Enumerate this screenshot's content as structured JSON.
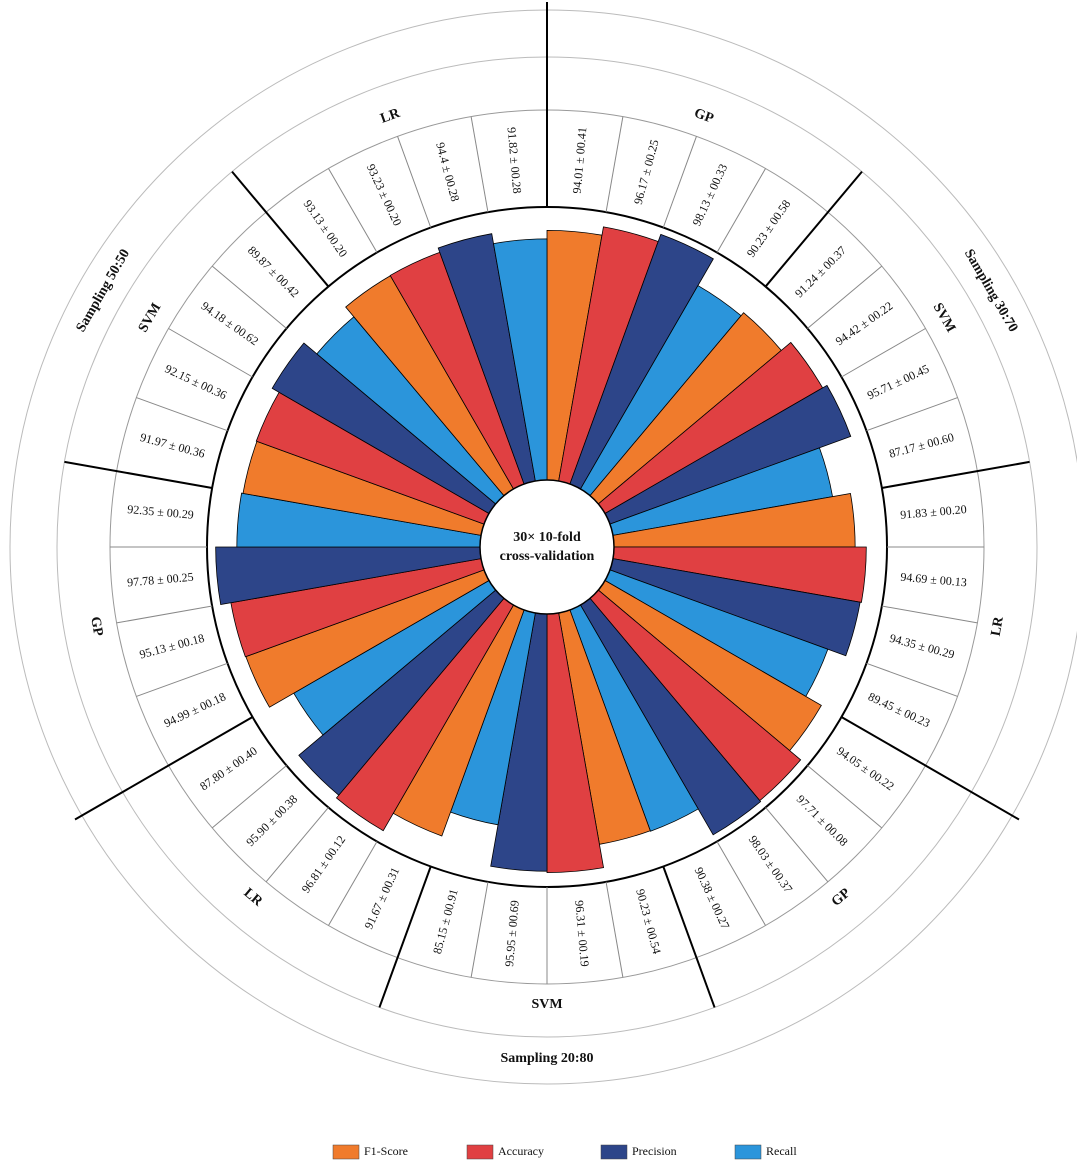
{
  "chart_data": {
    "type": "radial_bar",
    "center_label": [
      "30× 10-fold",
      "cross-validation"
    ],
    "sampling": [
      "Sampling 30:70",
      "Sampling 20:80",
      "Sampling 50:50"
    ],
    "categories": [
      "GP",
      "SVM",
      "LR",
      "GP",
      "SVM",
      "LR",
      "GP",
      "SVM",
      "LR"
    ],
    "rlim": [
      30,
      100
    ],
    "series": [
      {
        "name": "F1-Score",
        "color": "#f07b2c",
        "values": [
          94.01,
          91.24,
          91.83,
          94.05,
          90.23,
          91.67,
          94.99,
          91.97,
          93.13
        ],
        "value_labels": [
          "94.01 ± 00.41",
          "91.24 ± 00.37",
          "91.83 ± 00.20",
          "94.05 ± 00.22",
          "90.23 ± 00.54",
          "91.67 ± 00.31",
          "94.99 ± 00.18",
          "91.97 ± 00.36",
          "93.13 ± 00.20"
        ]
      },
      {
        "name": "Accuracy",
        "color": "#e04042",
        "values": [
          96.17,
          94.42,
          94.69,
          97.71,
          96.31,
          96.81,
          95.13,
          92.15,
          93.23
        ],
        "value_labels": [
          "96.17 ± 00.25",
          "94.42 ± 00.22",
          "94.69 ± 00.13",
          "97.71 ± 00.08",
          "96.31 ± 00.19",
          "96.81 ± 00.12",
          "95.13 ± 00.18",
          "92.15 ± 00.36",
          "93.23 ± 00.20"
        ]
      },
      {
        "name": "Precision",
        "color": "#2d4589",
        "values": [
          98.13,
          95.71,
          94.35,
          98.03,
          95.95,
          95.9,
          97.78,
          94.18,
          94.4
        ],
        "value_labels": [
          "98.13 ± 00.33",
          "95.71 ± 00.45",
          "94.35 ± 00.29",
          "98.03 ± 00.37",
          "95.95 ± 00.69",
          "95.90 ± 00.38",
          "97.78 ± 00.25",
          "94.18 ± 00.62",
          "94.4 ± 00.28"
        ]
      },
      {
        "name": "Recall",
        "color": "#2b95db",
        "values": [
          90.23,
          87.17,
          89.45,
          90.38,
          85.15,
          87.8,
          92.35,
          89.87,
          91.82
        ],
        "value_labels": [
          "90.23 ± 00.58",
          "87.17 ± 00.60",
          "89.45 ± 00.23",
          "90.38 ± 00.27",
          "85.15 ± 00.91",
          "87.80 ± 00.40",
          "92.35 ± 00.29",
          "89.87 ± 00.42",
          "91.82 ± 00.28"
        ]
      }
    ]
  }
}
